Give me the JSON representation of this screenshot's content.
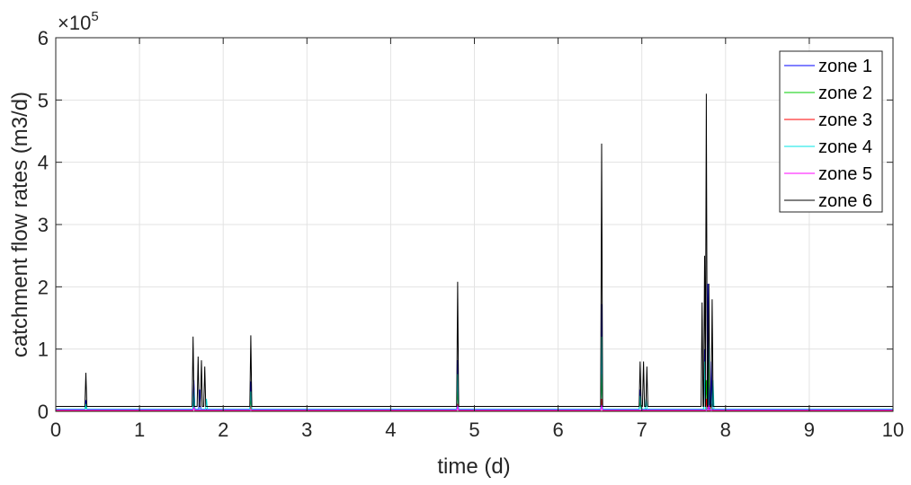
{
  "chart_data": {
    "type": "line",
    "xlabel": "time (d)",
    "ylabel": "catchment flow rates (m3/d)",
    "y_exponent_label": "×10",
    "y_exponent_power": "5",
    "xlim": [
      0,
      10
    ],
    "ylim": [
      0,
      6
    ],
    "y_scale_factor": 100000,
    "grid": true,
    "legend_position": "top-right",
    "x_ticks": [
      "0",
      "1",
      "2",
      "3",
      "4",
      "5",
      "6",
      "7",
      "8",
      "9",
      "10"
    ],
    "y_ticks": [
      "0",
      "1",
      "2",
      "3",
      "4",
      "5",
      "6"
    ],
    "series": [
      {
        "name": "zone 1",
        "color": "#0000ff",
        "baseline": 0.035,
        "peaks": [
          {
            "x": 0.36,
            "y": 0.18
          },
          {
            "x": 1.65,
            "y": 0.5
          },
          {
            "x": 1.72,
            "y": 0.35
          },
          {
            "x": 2.33,
            "y": 0.48
          },
          {
            "x": 4.8,
            "y": 0.82
          },
          {
            "x": 6.52,
            "y": 1.72
          },
          {
            "x": 6.98,
            "y": 0.35
          },
          {
            "x": 7.75,
            "y": 1.0
          },
          {
            "x": 7.79,
            "y": 2.05
          },
          {
            "x": 7.83,
            "y": 0.8
          }
        ]
      },
      {
        "name": "zone 2",
        "color": "#00cc00",
        "baseline": 0.025,
        "peaks": [
          {
            "x": 0.36,
            "y": 0.08
          },
          {
            "x": 1.65,
            "y": 0.25
          },
          {
            "x": 2.33,
            "y": 0.2
          },
          {
            "x": 4.8,
            "y": 0.35
          },
          {
            "x": 6.52,
            "y": 0.6
          },
          {
            "x": 6.98,
            "y": 0.15
          },
          {
            "x": 7.77,
            "y": 0.5
          },
          {
            "x": 7.8,
            "y": 0.8
          }
        ]
      },
      {
        "name": "zone 3",
        "color": "#ff0000",
        "baseline": 0.01,
        "peaks": [
          {
            "x": 1.65,
            "y": 0.1
          },
          {
            "x": 2.33,
            "y": 0.08
          },
          {
            "x": 4.8,
            "y": 0.12
          },
          {
            "x": 6.52,
            "y": 0.2
          },
          {
            "x": 7.77,
            "y": 0.2
          },
          {
            "x": 7.83,
            "y": 0.12
          }
        ]
      },
      {
        "name": "zone 4",
        "color": "#00e5e5",
        "baseline": 0.03,
        "peaks": [
          {
            "x": 0.36,
            "y": 0.12
          },
          {
            "x": 1.65,
            "y": 0.35
          },
          {
            "x": 1.8,
            "y": 0.2
          },
          {
            "x": 2.33,
            "y": 0.32
          },
          {
            "x": 4.8,
            "y": 0.6
          },
          {
            "x": 6.52,
            "y": 1.2
          },
          {
            "x": 6.98,
            "y": 0.25
          },
          {
            "x": 7.05,
            "y": 0.2
          },
          {
            "x": 7.75,
            "y": 0.8
          },
          {
            "x": 7.8,
            "y": 1.5
          },
          {
            "x": 7.85,
            "y": 0.5
          }
        ]
      },
      {
        "name": "zone 5",
        "color": "#ff00ff",
        "baseline": 0.02,
        "peaks": [
          {
            "x": 1.65,
            "y": 0.06
          },
          {
            "x": 4.8,
            "y": 0.08
          },
          {
            "x": 6.52,
            "y": 0.1
          },
          {
            "x": 7.8,
            "y": 0.1
          }
        ]
      },
      {
        "name": "zone 6",
        "color": "#000000",
        "baseline": 0.08,
        "peaks": [
          {
            "x": 0.36,
            "y": 0.62
          },
          {
            "x": 1.64,
            "y": 1.2
          },
          {
            "x": 1.7,
            "y": 0.88
          },
          {
            "x": 1.74,
            "y": 0.82
          },
          {
            "x": 1.78,
            "y": 0.72
          },
          {
            "x": 2.33,
            "y": 1.22
          },
          {
            "x": 4.8,
            "y": 2.08
          },
          {
            "x": 6.52,
            "y": 4.3
          },
          {
            "x": 6.98,
            "y": 0.8
          },
          {
            "x": 7.02,
            "y": 0.8
          },
          {
            "x": 7.06,
            "y": 0.72
          },
          {
            "x": 7.72,
            "y": 1.75
          },
          {
            "x": 7.75,
            "y": 2.5
          },
          {
            "x": 7.77,
            "y": 5.1
          },
          {
            "x": 7.8,
            "y": 2.05
          },
          {
            "x": 7.84,
            "y": 1.8
          }
        ]
      }
    ]
  }
}
